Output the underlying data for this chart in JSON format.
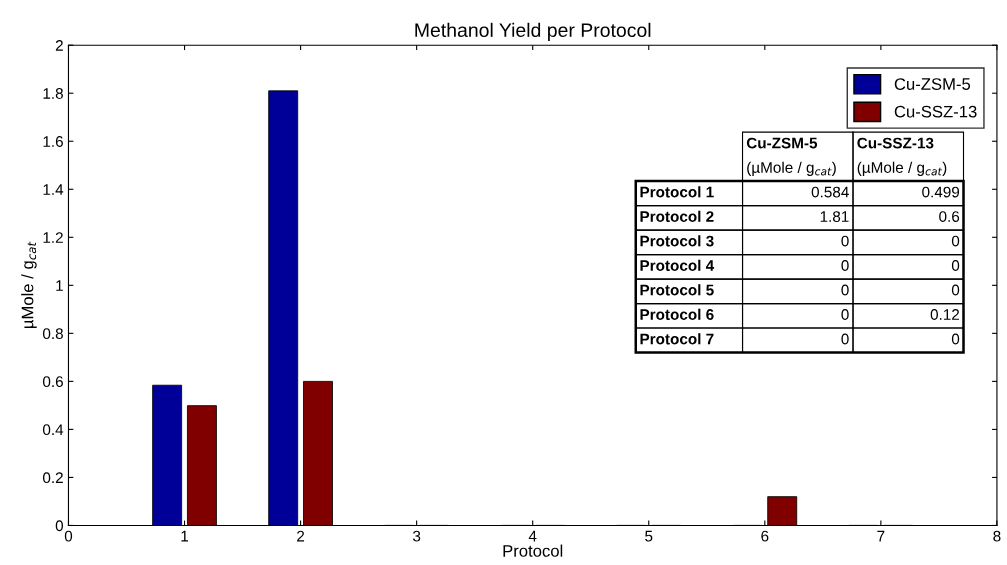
{
  "chart_data": {
    "type": "bar",
    "title": "Methanol Yield per Protocol",
    "xlabel": "Protocol",
    "ylabel": "µMole / g$_{cat}$",
    "x": [
      1,
      2,
      3,
      4,
      5,
      6,
      7
    ],
    "series": [
      {
        "name": "Cu-ZSM-5",
        "color": "#000099",
        "values": [
          0.584,
          1.81,
          0,
          0,
          0,
          0,
          0
        ]
      },
      {
        "name": "Cu-SSZ-13",
        "color": "#800000",
        "values": [
          0.499,
          0.6,
          0,
          0,
          0,
          0.12,
          0
        ]
      }
    ],
    "xlim": [
      0,
      8
    ],
    "xticks": [
      0,
      1,
      2,
      3,
      4,
      5,
      6,
      7,
      8
    ],
    "ylim": [
      0,
      2
    ],
    "yticks": [
      0,
      0.2,
      0.4,
      0.6,
      0.8,
      1,
      1.2,
      1.4,
      1.6,
      1.8,
      2
    ],
    "legend": "top right",
    "grid": false,
    "annotations": [
      "Protocol 1",
      "Protocol 2",
      "Protocol 3",
      "Protocol 4",
      "Protocol 5",
      "Protocol 6",
      "Protocol 7",
      "(µMole / g$_{cat}$)",
      "(µMole / g$_{cat}$)",
      "0.584",
      "0.499",
      "1.81",
      "0.6",
      "0",
      "0",
      "0",
      "0",
      "0",
      "0",
      "0",
      "0.12",
      "0",
      "0"
    ]
  }
}
